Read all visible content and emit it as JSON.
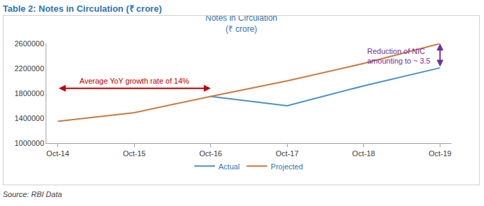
{
  "heading": "Table 2: Notes in Circulation (₹ crore)",
  "source": "Source: RBI Data",
  "chart_data": {
    "type": "line",
    "title": "Notes in Circulation",
    "subtitle": "(₹ crore)",
    "categories": [
      "Oct-14",
      "Oct-15",
      "Oct-16",
      "Oct-17",
      "Oct-18",
      "Oct-19"
    ],
    "series": [
      {
        "name": "Actual",
        "color": "#4A8FCB",
        "values": [
          null,
          null,
          1750000,
          1600000,
          1920000,
          2210000
        ]
      },
      {
        "name": "Projected",
        "color": "#D0773A",
        "values": [
          1350000,
          1490000,
          1750000,
          2000000,
          2280000,
          2600000
        ]
      }
    ],
    "ylim": [
      1000000,
      2600000
    ],
    "yticks": [
      1000000,
      1400000,
      1800000,
      2200000,
      2600000
    ],
    "grid": false,
    "legend": "bottom",
    "annotations": [
      {
        "text": "Average YoY growth rate of 14%"
      },
      {
        "lines": [
          "Reduction of NIC",
          "amounting to ~ 3.5"
        ]
      }
    ]
  }
}
